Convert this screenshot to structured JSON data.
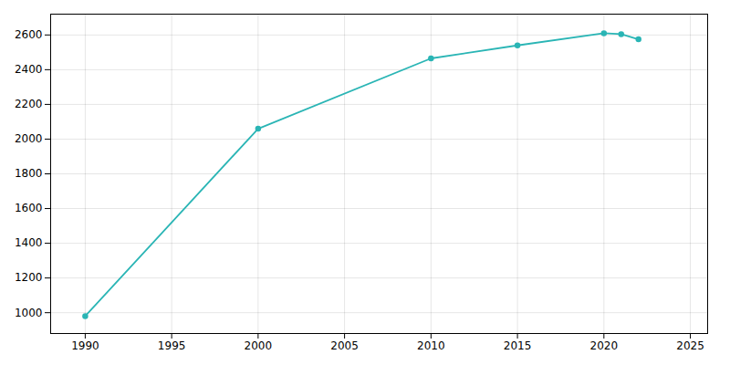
{
  "chart_data": {
    "type": "line",
    "x": [
      1990,
      2000,
      2010,
      2015,
      2020,
      2021,
      2022
    ],
    "values": [
      980,
      2060,
      2465,
      2540,
      2610,
      2605,
      2575
    ],
    "color": "#2ab5b5",
    "marker": "circle",
    "xlim": [
      1988,
      2026
    ],
    "ylim": [
      880,
      2720
    ],
    "xticks": [
      1990,
      1995,
      2000,
      2005,
      2010,
      2015,
      2020,
      2025
    ],
    "yticks": [
      1000,
      1200,
      1400,
      1600,
      1800,
      2000,
      2200,
      2400,
      2600
    ],
    "grid": true
  }
}
